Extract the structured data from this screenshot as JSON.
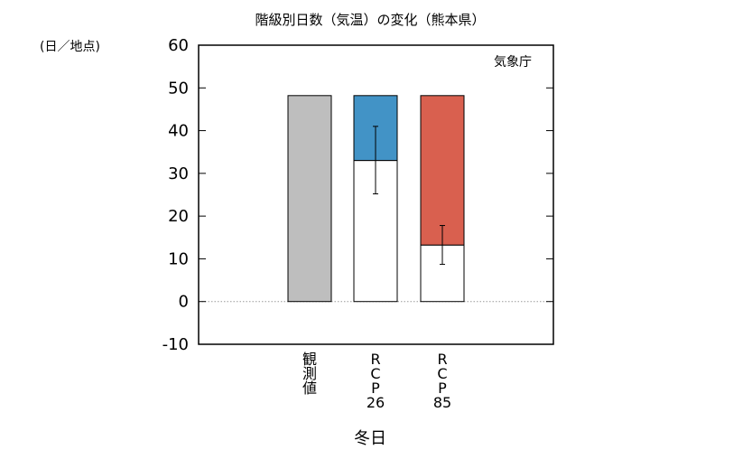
{
  "chart_data": {
    "type": "bar",
    "title": "階級別日数（気温）の変化（熊本県）",
    "ylabel": "(日／地点)",
    "xlabel": "冬日",
    "source": "気象庁",
    "ylim": [
      -10,
      60
    ],
    "yticks": [
      -10,
      0,
      10,
      20,
      30,
      40,
      50,
      60
    ],
    "grid": false,
    "zero_line": "dotted",
    "categories": [
      {
        "label_lines": [
          "観",
          "測",
          "値"
        ]
      },
      {
        "label_lines": [
          "R",
          "C",
          "P",
          "26"
        ]
      },
      {
        "label_lines": [
          "R",
          "C",
          "P",
          "85"
        ]
      }
    ],
    "bars": [
      {
        "kind": "observed",
        "value": 48.2,
        "color": "#bebebe"
      },
      {
        "kind": "projection",
        "future": 33.0,
        "change": -15.2,
        "error_low": 25.2,
        "error_high": 41.0,
        "color": "#4293c6"
      },
      {
        "kind": "projection",
        "future": 13.2,
        "change": -35.0,
        "error_low": 8.7,
        "error_high": 17.8,
        "color": "#d9604f"
      }
    ]
  }
}
